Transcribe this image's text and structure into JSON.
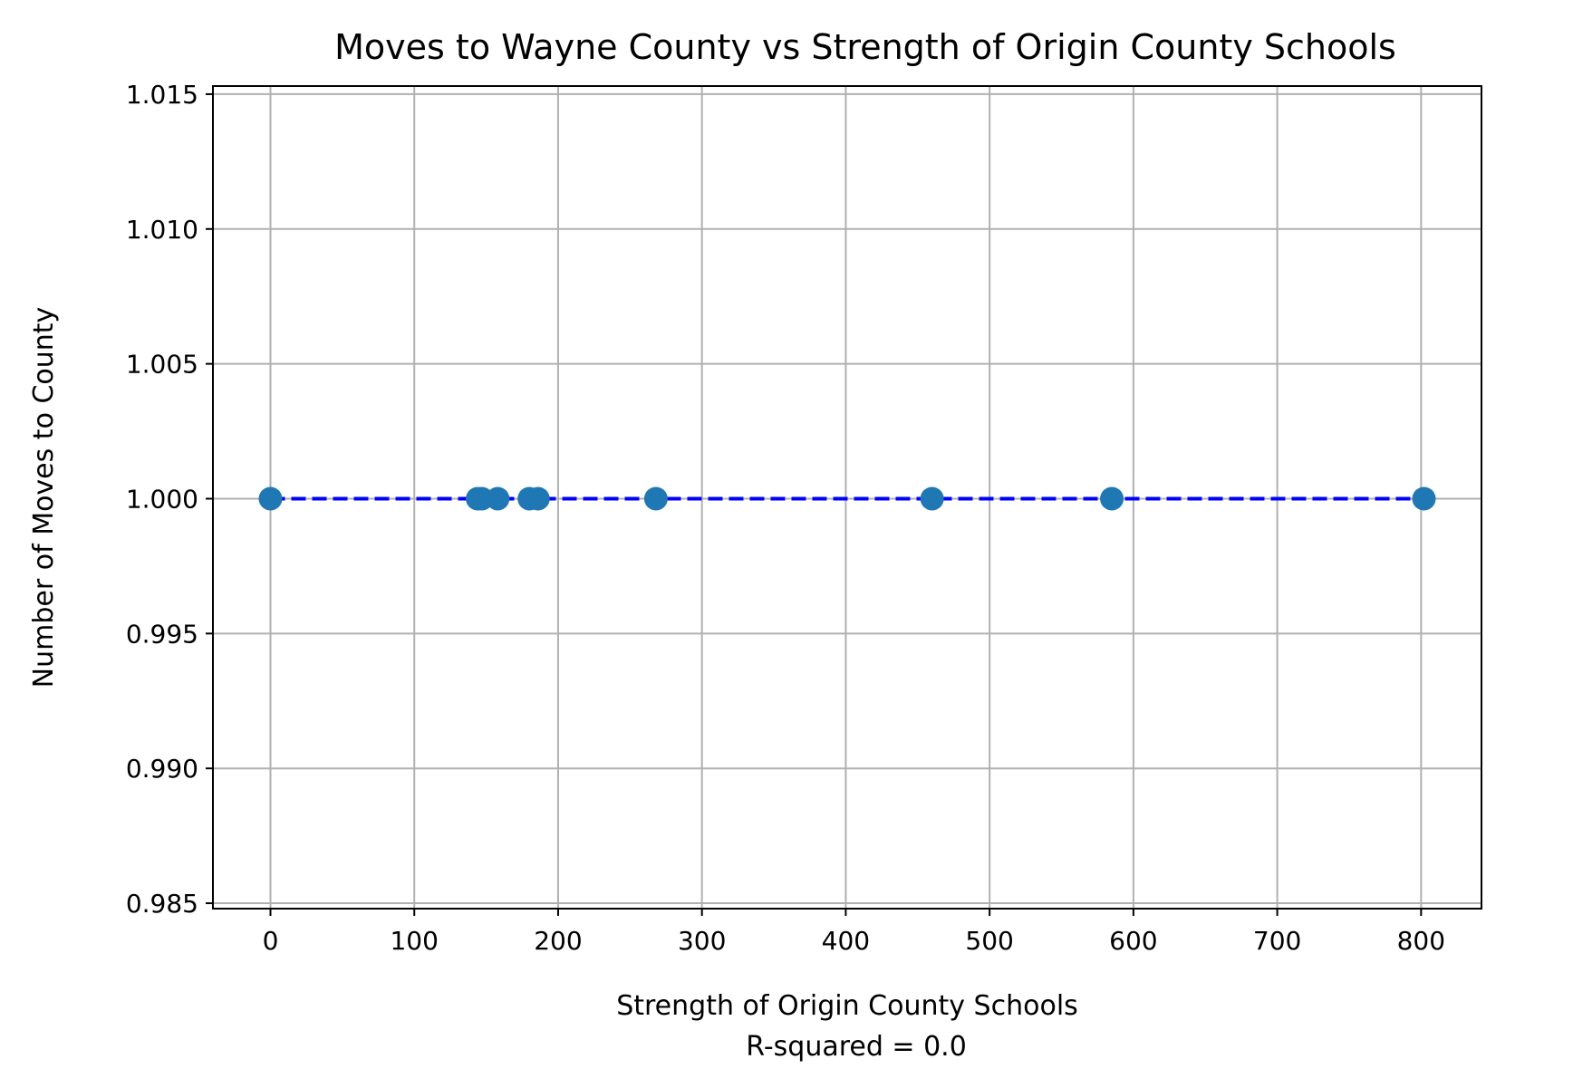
{
  "chart_data": {
    "type": "scatter",
    "title": "Moves to Wayne County vs Strength of Origin County Schools",
    "xlabel": "Strength of Origin County Schools",
    "xlabel_line2": "R-squared = 0.0",
    "ylabel": "Number of Moves to County",
    "xlim": [
      -40,
      842
    ],
    "ylim": [
      0.9848,
      1.0153
    ],
    "x_ticks": [
      0,
      100,
      200,
      300,
      400,
      500,
      600,
      700,
      800
    ],
    "x_tick_labels": [
      "0",
      "100",
      "200",
      "300",
      "400",
      "500",
      "600",
      "700",
      "800"
    ],
    "y_ticks": [
      0.985,
      0.99,
      0.995,
      1.0,
      1.005,
      1.01,
      1.015
    ],
    "y_tick_labels": [
      "0.985",
      "0.990",
      "0.995",
      "1.000",
      "1.005",
      "1.010",
      "1.015"
    ],
    "grid": true,
    "series": [
      {
        "type": "scatter",
        "color": "#1f77b4",
        "x": [
          0,
          144,
          147,
          158,
          180,
          186,
          268,
          460,
          585,
          802
        ],
        "y": [
          1,
          1,
          1,
          1,
          1,
          1,
          1,
          1,
          1,
          1
        ]
      },
      {
        "type": "line",
        "style": "dashed",
        "color": "#0000ff",
        "x": [
          0,
          802
        ],
        "y": [
          1,
          1
        ]
      }
    ]
  }
}
